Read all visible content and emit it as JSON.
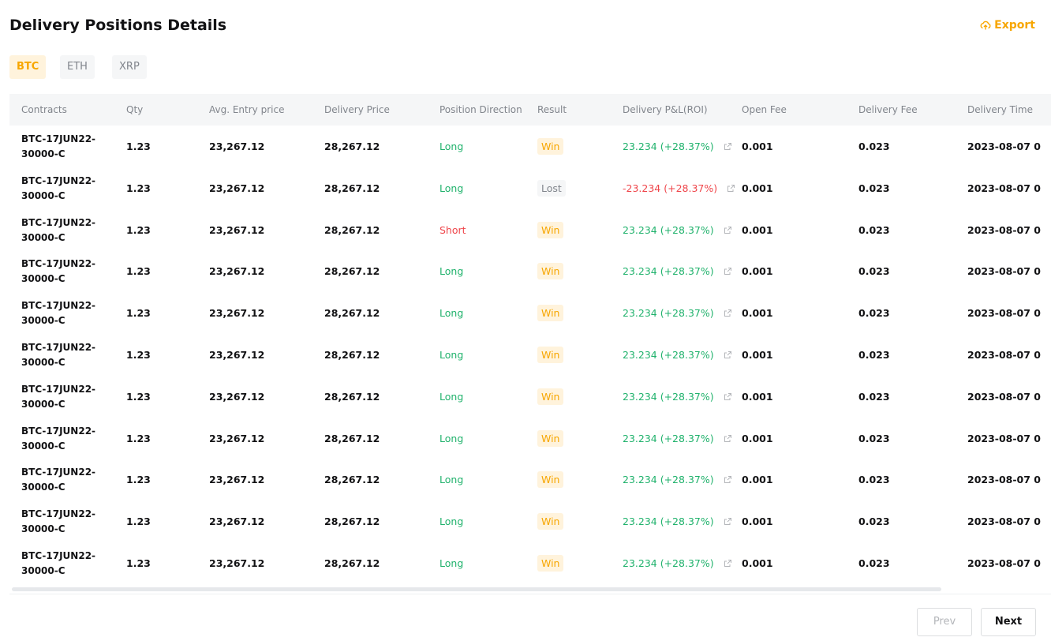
{
  "header": {
    "title": "Delivery Positions Details",
    "export": "Export"
  },
  "tabs": [
    "BTC",
    "ETH",
    "XRP"
  ],
  "table": {
    "headers": [
      "Contracts",
      "Qty",
      "Avg. Entry price",
      "Delivery Price",
      "Position Direction",
      "Result",
      "Delivery P&L(ROI)",
      "Open Fee",
      "Delivery Fee",
      "Delivery Time"
    ],
    "direction_colors": {
      "Long": "#20b26c",
      "Short": "#ef454a"
    },
    "result_styles": {
      "Win": {
        "color": "#f7a600",
        "background": "#fff3dc"
      },
      "Lost": {
        "color": "#81858c",
        "background": "#f5f6f7"
      }
    },
    "pnl_colors": {
      "positive": "#20b26c",
      "negative": "#ef454a"
    },
    "rows": [
      [
        "BTC-17JUN22-30000-C",
        "1.23",
        "23,267.12",
        "28,267.12",
        "Long",
        "Win",
        "23.234 (+28.37%)",
        "0.001",
        "0.023",
        "2023-08-07 0"
      ],
      [
        "BTC-17JUN22-30000-C",
        "1.23",
        "23,267.12",
        "28,267.12",
        "Long",
        "Lost",
        "-23.234 (+28.37%)",
        "0.001",
        "0.023",
        "2023-08-07 0"
      ],
      [
        "BTC-17JUN22-30000-C",
        "1.23",
        "23,267.12",
        "28,267.12",
        "Short",
        "Win",
        "23.234 (+28.37%)",
        "0.001",
        "0.023",
        "2023-08-07 0"
      ],
      [
        "BTC-17JUN22-30000-C",
        "1.23",
        "23,267.12",
        "28,267.12",
        "Long",
        "Win",
        "23.234 (+28.37%)",
        "0.001",
        "0.023",
        "2023-08-07 0"
      ],
      [
        "BTC-17JUN22-30000-C",
        "1.23",
        "23,267.12",
        "28,267.12",
        "Long",
        "Win",
        "23.234 (+28.37%)",
        "0.001",
        "0.023",
        "2023-08-07 0"
      ],
      [
        "BTC-17JUN22-30000-C",
        "1.23",
        "23,267.12",
        "28,267.12",
        "Long",
        "Win",
        "23.234 (+28.37%)",
        "0.001",
        "0.023",
        "2023-08-07 0"
      ],
      [
        "BTC-17JUN22-30000-C",
        "1.23",
        "23,267.12",
        "28,267.12",
        "Long",
        "Win",
        "23.234 (+28.37%)",
        "0.001",
        "0.023",
        "2023-08-07 0"
      ],
      [
        "BTC-17JUN22-30000-C",
        "1.23",
        "23,267.12",
        "28,267.12",
        "Long",
        "Win",
        "23.234 (+28.37%)",
        "0.001",
        "0.023",
        "2023-08-07 0"
      ],
      [
        "BTC-17JUN22-30000-C",
        "1.23",
        "23,267.12",
        "28,267.12",
        "Long",
        "Win",
        "23.234 (+28.37%)",
        "0.001",
        "0.023",
        "2023-08-07 0"
      ],
      [
        "BTC-17JUN22-30000-C",
        "1.23",
        "23,267.12",
        "28,267.12",
        "Long",
        "Win",
        "23.234 (+28.37%)",
        "0.001",
        "0.023",
        "2023-08-07 0"
      ],
      [
        "BTC-17JUN22-30000-C",
        "1.23",
        "23,267.12",
        "28,267.12",
        "Long",
        "Win",
        "23.234 (+28.37%)",
        "0.001",
        "0.023",
        "2023-08-07 0"
      ]
    ]
  },
  "pagination": {
    "prev": "Prev",
    "next": "Next"
  }
}
